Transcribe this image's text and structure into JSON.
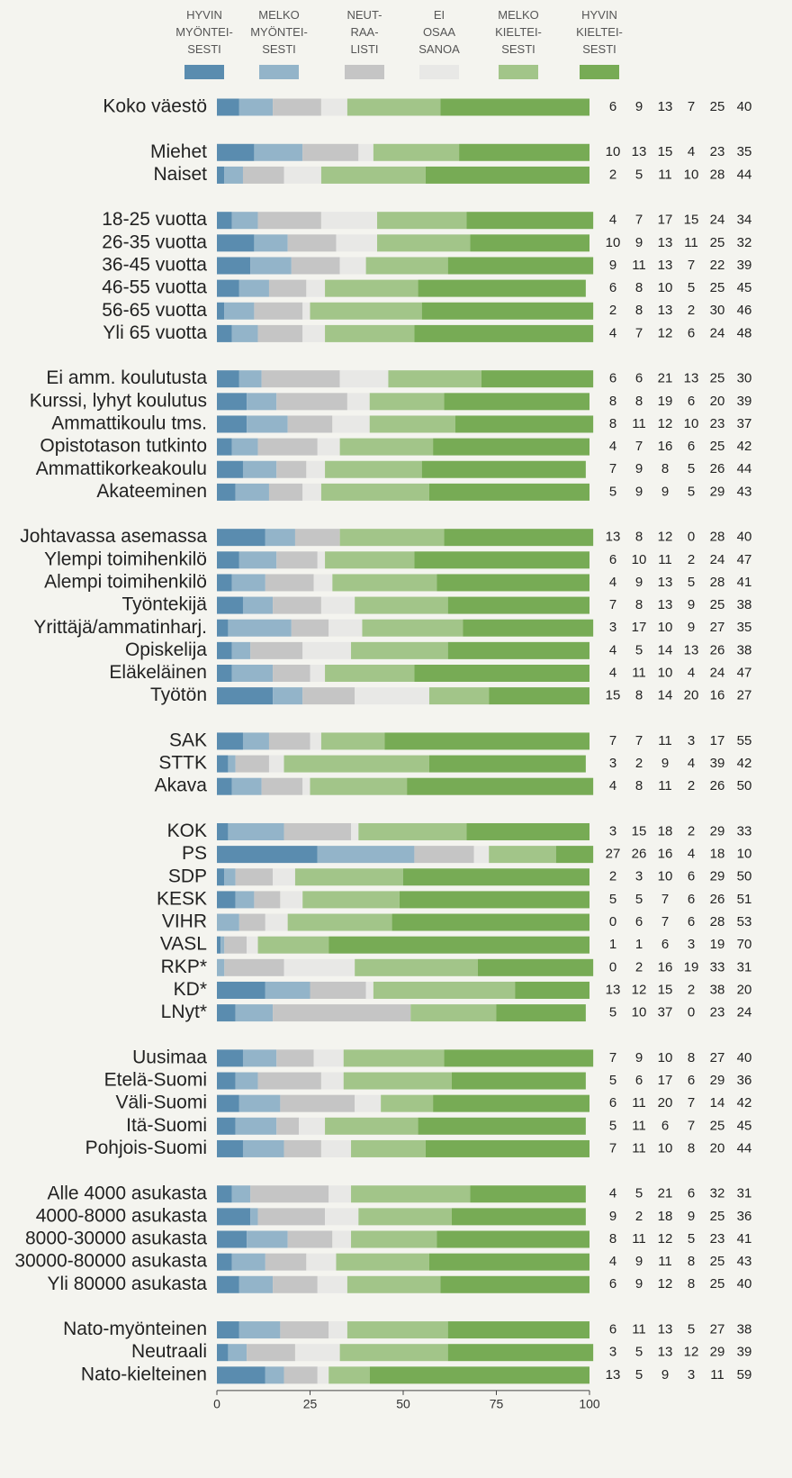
{
  "chart_data": {
    "type": "stacked_barh",
    "categories": [
      "Koko väestö",
      null,
      "Miehet",
      "Naiset",
      null,
      "18-25 vuotta",
      "26-35 vuotta",
      "36-45 vuotta",
      "46-55 vuotta",
      "56-65 vuotta",
      "Yli 65 vuotta",
      null,
      "Ei amm. koulutusta",
      "Kurssi, lyhyt koulutus",
      "Ammattikoulu tms.",
      "Opistotason tutkinto",
      "Ammattikorkeakoulu",
      "Akateeminen",
      null,
      "Johtavassa asemassa",
      "Ylempi toimihenkilö",
      "Alempi toimihenkilö",
      "Työntekijä",
      "Yrittäjä/ammatinharj.",
      "Opiskelija",
      "Eläkeläinen",
      "Työtön",
      null,
      "SAK",
      "STTK",
      "Akava",
      null,
      "KOK",
      "PS",
      "SDP",
      "KESK",
      "VIHR",
      "VASL",
      "RKP*",
      "KD*",
      "LNyt*",
      null,
      "Uusimaa",
      "Etelä-Suomi",
      "Väli-Suomi",
      "Itä-Suomi",
      "Pohjois-Suomi",
      null,
      "Alle 4000 asukasta",
      "4000-8000 asukasta",
      "8000-30000 asukasta",
      "30000-80000 asukasta",
      "Yli 80000 asukasta",
      null,
      "Nato-myönteinen",
      "Neutraali",
      "Nato-kielteinen"
    ],
    "series": [
      {
        "name": "HYVIN\nMYÖNTEI-\nSESTI",
        "color": "#5a8caf",
        "values": [
          6,
          null,
          10,
          2,
          null,
          4,
          10,
          9,
          6,
          2,
          4,
          null,
          6,
          8,
          8,
          4,
          7,
          5,
          null,
          13,
          6,
          4,
          7,
          3,
          4,
          4,
          15,
          null,
          7,
          3,
          4,
          null,
          3,
          27,
          2,
          5,
          0,
          1,
          0,
          13,
          5,
          null,
          7,
          5,
          6,
          5,
          7,
          null,
          4,
          9,
          8,
          4,
          6,
          null,
          6,
          3,
          13
        ]
      },
      {
        "name": "MELKO\nMYÖNTEI-\nSESTI",
        "color": "#93b4c9",
        "values": [
          9,
          null,
          13,
          5,
          null,
          7,
          9,
          11,
          8,
          8,
          7,
          null,
          6,
          8,
          11,
          7,
          9,
          9,
          null,
          8,
          10,
          9,
          8,
          17,
          5,
          11,
          8,
          null,
          7,
          2,
          8,
          null,
          15,
          26,
          3,
          5,
          6,
          1,
          2,
          12,
          10,
          null,
          9,
          6,
          11,
          11,
          11,
          null,
          5,
          2,
          11,
          9,
          9,
          null,
          11,
          5,
          5
        ]
      },
      {
        "name": "NEUT-\nRAA-\nLISTI",
        "color": "#c5c5c5",
        "values": [
          13,
          null,
          15,
          11,
          null,
          17,
          13,
          13,
          10,
          13,
          12,
          null,
          21,
          19,
          12,
          16,
          8,
          9,
          null,
          12,
          11,
          13,
          13,
          10,
          14,
          10,
          14,
          null,
          11,
          9,
          11,
          null,
          18,
          16,
          10,
          7,
          7,
          6,
          16,
          15,
          37,
          null,
          10,
          17,
          20,
          6,
          10,
          null,
          21,
          18,
          12,
          11,
          12,
          null,
          13,
          13,
          9
        ]
      },
      {
        "name": "EI\nOSAA\nSANOA",
        "color": "#e8e8e6",
        "values": [
          7,
          null,
          4,
          10,
          null,
          15,
          11,
          7,
          5,
          2,
          6,
          null,
          13,
          6,
          10,
          6,
          5,
          5,
          null,
          0,
          2,
          5,
          9,
          9,
          13,
          4,
          20,
          null,
          3,
          4,
          2,
          null,
          2,
          4,
          6,
          6,
          6,
          3,
          19,
          2,
          0,
          null,
          8,
          6,
          7,
          7,
          8,
          null,
          6,
          9,
          5,
          8,
          8,
          null,
          5,
          12,
          3
        ]
      },
      {
        "name": "MELKO\nKIELTEI-\nSESTI",
        "color": "#a2c589",
        "values": [
          25,
          null,
          23,
          28,
          null,
          24,
          25,
          22,
          25,
          30,
          24,
          null,
          25,
          20,
          23,
          25,
          26,
          29,
          null,
          28,
          24,
          28,
          25,
          27,
          26,
          24,
          16,
          null,
          17,
          39,
          26,
          null,
          29,
          18,
          29,
          26,
          28,
          19,
          33,
          38,
          23,
          null,
          27,
          29,
          14,
          25,
          20,
          null,
          32,
          25,
          23,
          25,
          25,
          null,
          27,
          29,
          11
        ]
      },
      {
        "name": "HYVIN\nKIELTEI-\nSESTI",
        "color": "#77ab55",
        "values": [
          40,
          null,
          35,
          44,
          null,
          34,
          32,
          39,
          45,
          46,
          48,
          null,
          30,
          39,
          37,
          42,
          44,
          43,
          null,
          40,
          47,
          41,
          38,
          35,
          38,
          47,
          27,
          null,
          55,
          42,
          50,
          null,
          33,
          10,
          50,
          51,
          53,
          70,
          31,
          20,
          24,
          null,
          40,
          36,
          42,
          45,
          44,
          null,
          31,
          36,
          41,
          43,
          40,
          null,
          38,
          39,
          59
        ]
      }
    ],
    "xlim": [
      0,
      100
    ],
    "xticks": [
      0,
      25,
      50,
      75,
      100
    ]
  }
}
